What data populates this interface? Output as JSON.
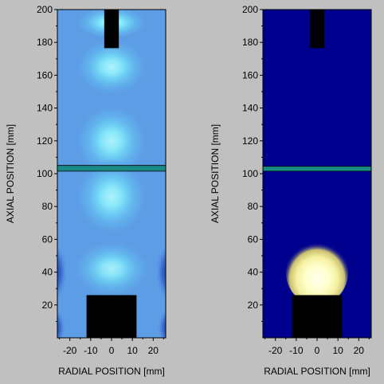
{
  "chart_data": [
    {
      "type": "heatmap",
      "id": "left",
      "xlabel": "RADIAL POSITION [mm]",
      "ylabel": "AXIAL POSITION [mm]",
      "xlim": [
        -26,
        26
      ],
      "ylim": [
        0,
        200
      ],
      "xticks": [
        -20,
        -10,
        0,
        10,
        20
      ],
      "yticks": [
        20,
        40,
        60,
        80,
        100,
        120,
        140,
        160,
        180,
        200
      ],
      "yminor": [
        10,
        30,
        50,
        70,
        90,
        110,
        130,
        150,
        170,
        190
      ],
      "background_color": "#5d9de6",
      "rings": [
        {
          "cx": 0,
          "cy": 120,
          "rx": 17,
          "ry": 22,
          "level": 0.5
        },
        {
          "cx": 0,
          "cy": 86,
          "rx": 17,
          "ry": 23,
          "level": 0.5
        },
        {
          "cx": 0,
          "cy": 165,
          "rx": 17,
          "ry": 17,
          "level": 0.5
        },
        {
          "cx": 0,
          "cy": 42,
          "rx": 18,
          "ry": 17,
          "level": 0.45
        },
        {
          "cx": 0,
          "cy": 192,
          "rx": 17,
          "ry": 10,
          "level": 0.8
        }
      ],
      "shadows": [
        {
          "cx": -27,
          "cy": 40,
          "rx": 6,
          "ry": 18
        },
        {
          "cx": 27,
          "cy": 40,
          "rx": 6,
          "ry": 18
        },
        {
          "cx": -27,
          "cy": 6,
          "rx": 5,
          "ry": 12
        },
        {
          "cx": 27,
          "cy": 6,
          "rx": 5,
          "ry": 12
        }
      ],
      "teal_band": {
        "y0": 101.5,
        "y1": 105,
        "color": "#1a8a85"
      },
      "electrodes": [
        {
          "name": "upper",
          "x0": -3.5,
          "x1": 3.5,
          "y0": 176.5,
          "y1": 200
        },
        {
          "name": "lower",
          "x0": -12,
          "x1": 12,
          "y0": 0,
          "y1": 26
        }
      ]
    },
    {
      "type": "heatmap",
      "id": "right",
      "xlabel": "RADIAL POSITION [mm]",
      "ylabel": "AXIAL POSITION [mm]",
      "xlim": [
        -26,
        26
      ],
      "ylim": [
        0,
        200
      ],
      "xticks": [
        -20,
        -10,
        0,
        10,
        20
      ],
      "yticks": [
        20,
        40,
        60,
        80,
        100,
        120,
        140,
        160,
        180,
        200
      ],
      "yminor": [
        10,
        30,
        50,
        70,
        90,
        110,
        130,
        150,
        170,
        190
      ],
      "background_color": "#00008f",
      "glow": {
        "cx": 0,
        "cy": 40,
        "rx": 15,
        "ry": 20,
        "color": "#ffffcc"
      },
      "teal_band": {
        "y0": 101.5,
        "y1": 104.5,
        "color": "#1a8a85"
      },
      "electrodes": [
        {
          "name": "upper",
          "x0": -3.5,
          "x1": 3.5,
          "y0": 176.5,
          "y1": 200
        },
        {
          "name": "lower",
          "x0": -12,
          "x1": 12,
          "y0": 0,
          "y1": 26
        }
      ]
    }
  ]
}
